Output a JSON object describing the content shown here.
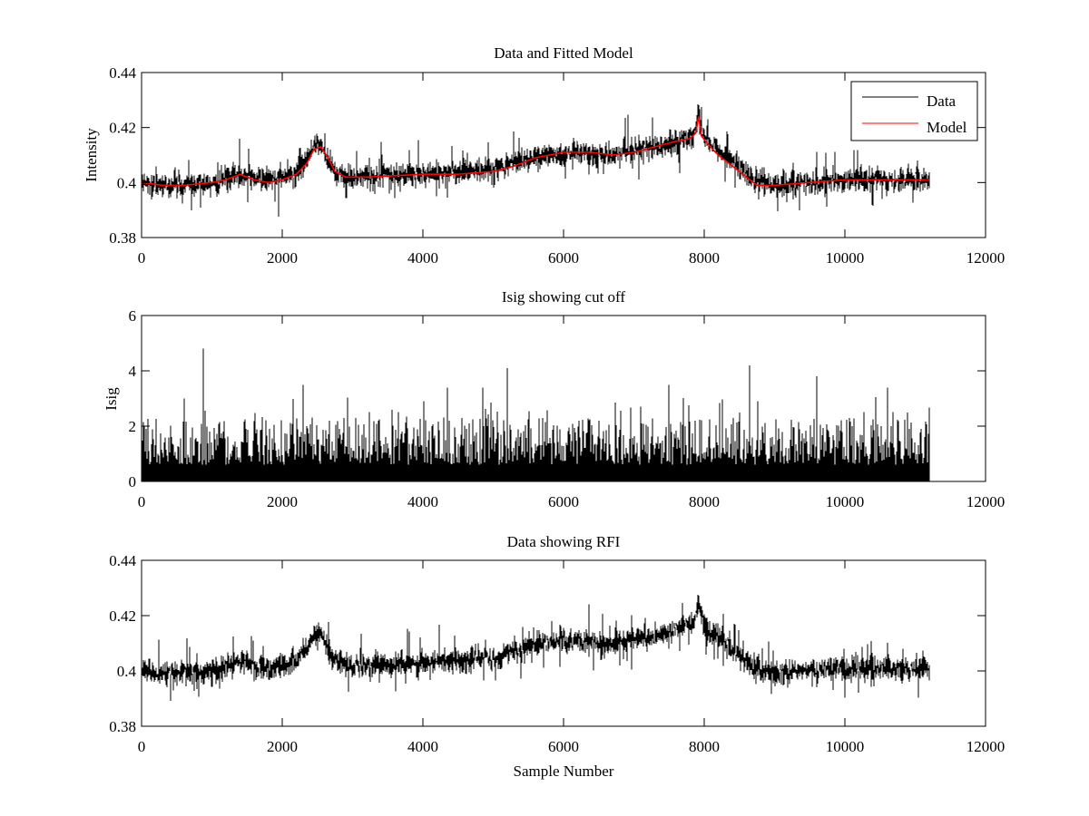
{
  "figure": {
    "background": "#ffffff"
  },
  "chart_data": [
    {
      "type": "line",
      "title": "Data and Fitted Model",
      "xlabel": "",
      "ylabel": "Intensity",
      "xlim": [
        0,
        12000
      ],
      "ylim": [
        0.38,
        0.44
      ],
      "xticks": [
        0,
        2000,
        4000,
        6000,
        8000,
        10000,
        12000
      ],
      "xtick_labels": [
        "0",
        "2000",
        "4000",
        "6000",
        "8000",
        "10000",
        "12000"
      ],
      "yticks": [
        0.38,
        0.4,
        0.42,
        0.44
      ],
      "ytick_labels": [
        "0.38",
        "0.4",
        "0.42",
        "0.44"
      ],
      "grid": false,
      "legend": {
        "placement": "top-right",
        "entries": [
          "Data",
          "Model"
        ]
      },
      "series": [
        {
          "name": "Data",
          "color": "#000000",
          "style": "noisy-signal",
          "x_range": [
            0,
            11200
          ],
          "noise_amplitude": 0.004,
          "baseline": [
            [
              0,
              0.4
            ],
            [
              300,
              0.399
            ],
            [
              1000,
              0.4
            ],
            [
              1400,
              0.403
            ],
            [
              1800,
              0.401
            ],
            [
              2200,
              0.403
            ],
            [
              2450,
              0.413
            ],
            [
              2550,
              0.414
            ],
            [
              2700,
              0.405
            ],
            [
              2900,
              0.402
            ],
            [
              4000,
              0.403
            ],
            [
              5000,
              0.405
            ],
            [
              5500,
              0.409
            ],
            [
              6000,
              0.411
            ],
            [
              6700,
              0.41
            ],
            [
              7500,
              0.414
            ],
            [
              7850,
              0.417
            ],
            [
              7920,
              0.426
            ],
            [
              8000,
              0.416
            ],
            [
              8400,
              0.408
            ],
            [
              8700,
              0.401
            ],
            [
              9000,
              0.399
            ],
            [
              9500,
              0.4
            ],
            [
              10000,
              0.401
            ],
            [
              11200,
              0.401
            ]
          ]
        },
        {
          "name": "Model",
          "color": "#ff0000",
          "style": "smooth",
          "x": [
            0,
            300,
            600,
            1000,
            1200,
            1400,
            1600,
            1800,
            2000,
            2200,
            2350,
            2450,
            2550,
            2650,
            2750,
            2900,
            3200,
            4000,
            4500,
            5000,
            5300,
            5600,
            6000,
            6400,
            6700,
            7000,
            7300,
            7600,
            7800,
            7880,
            7920,
            7960,
            8050,
            8200,
            8400,
            8600,
            8750,
            9000,
            9500,
            10000,
            10500,
            11200
          ],
          "values": [
            0.4,
            0.399,
            0.399,
            0.4,
            0.401,
            0.403,
            0.401,
            0.4,
            0.401,
            0.403,
            0.407,
            0.412,
            0.413,
            0.409,
            0.404,
            0.402,
            0.402,
            0.403,
            0.403,
            0.404,
            0.406,
            0.409,
            0.411,
            0.411,
            0.41,
            0.411,
            0.413,
            0.415,
            0.416,
            0.418,
            0.424,
            0.417,
            0.414,
            0.41,
            0.406,
            0.402,
            0.399,
            0.399,
            0.4,
            0.401,
            0.401,
            0.401
          ]
        }
      ]
    },
    {
      "type": "line",
      "title": "Isig showing cut off",
      "xlabel": "",
      "ylabel": "Isig",
      "xlim": [
        0,
        12000
      ],
      "ylim": [
        0,
        6
      ],
      "xticks": [
        0,
        2000,
        4000,
        6000,
        8000,
        10000,
        12000
      ],
      "xtick_labels": [
        "0",
        "2000",
        "4000",
        "6000",
        "8000",
        "10000",
        "12000"
      ],
      "yticks": [
        0,
        2,
        4,
        6
      ],
      "ytick_labels": [
        "0",
        "2",
        "4",
        "6"
      ],
      "grid": false,
      "series": [
        {
          "color": "#000000",
          "style": "abs-noise",
          "x_range": [
            0,
            11200
          ],
          "typical_max": 2.5,
          "spikes": [
            [
              880,
              4.8
            ],
            [
              5200,
              4.1
            ],
            [
              8650,
              4.2
            ],
            [
              4350,
              3.4
            ],
            [
              2300,
              3.5
            ],
            [
              7500,
              3.5
            ],
            [
              10600,
              3.4
            ],
            [
              9600,
              3.8
            ],
            [
              4850,
              3.4
            ]
          ]
        }
      ]
    },
    {
      "type": "line",
      "title": "Data showing RFI",
      "xlabel": "Sample Number",
      "ylabel": "",
      "xlim": [
        0,
        12000
      ],
      "ylim": [
        0.38,
        0.44
      ],
      "xticks": [
        0,
        2000,
        4000,
        6000,
        8000,
        10000,
        12000
      ],
      "xtick_labels": [
        "0",
        "2000",
        "4000",
        "6000",
        "8000",
        "10000",
        "12000"
      ],
      "yticks": [
        0.38,
        0.4,
        0.42,
        0.44
      ],
      "ytick_labels": [
        "0.38",
        "0.4",
        "0.42",
        "0.44"
      ],
      "grid": false,
      "series": [
        {
          "color": "#000000",
          "style": "noisy-signal",
          "x_range": [
            0,
            11200
          ],
          "noise_amplitude": 0.004,
          "baseline": [
            [
              0,
              0.4
            ],
            [
              300,
              0.399
            ],
            [
              1000,
              0.4
            ],
            [
              1400,
              0.403
            ],
            [
              1800,
              0.401
            ],
            [
              2200,
              0.403
            ],
            [
              2450,
              0.413
            ],
            [
              2550,
              0.414
            ],
            [
              2700,
              0.405
            ],
            [
              2900,
              0.402
            ],
            [
              4000,
              0.403
            ],
            [
              5000,
              0.405
            ],
            [
              5500,
              0.409
            ],
            [
              6000,
              0.411
            ],
            [
              6700,
              0.41
            ],
            [
              7500,
              0.414
            ],
            [
              7850,
              0.417
            ],
            [
              7920,
              0.426
            ],
            [
              8000,
              0.416
            ],
            [
              8400,
              0.408
            ],
            [
              8700,
              0.401
            ],
            [
              9000,
              0.399
            ],
            [
              9500,
              0.4
            ],
            [
              10000,
              0.401
            ],
            [
              11200,
              0.401
            ]
          ]
        }
      ]
    }
  ]
}
